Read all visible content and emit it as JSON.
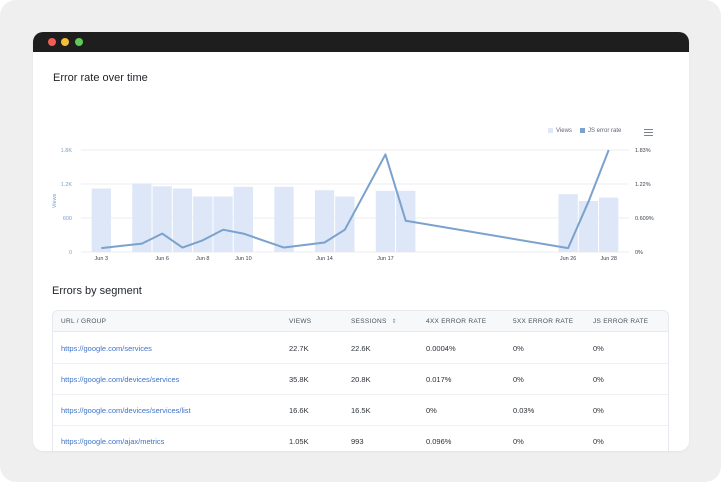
{
  "window": {
    "dots": [
      "close",
      "minimize",
      "maximize"
    ]
  },
  "chart": {
    "title": "Error rate over time",
    "legend": [
      {
        "label": "Views",
        "color": "#dde7f7"
      },
      {
        "label": "JS error rate",
        "color": "#7aa2cc"
      }
    ],
    "menu_icon": "hamburger-menu-icon"
  },
  "chart_data": {
    "type": "bar+line",
    "title": "Error rate over time",
    "x_ticks": [
      "Jun 3",
      "Jun 6",
      "Jun 8",
      "Jun 10",
      "Jun 14",
      "Jun 17",
      "Jun 26",
      "Jun 28"
    ],
    "left_axis": {
      "label": "Views",
      "ticks": [
        "0",
        "600",
        "1.2K",
        "1.8K"
      ],
      "range": [
        0,
        1800
      ]
    },
    "right_axis": {
      "ticks": [
        "0%",
        "0.609%",
        "1.22%",
        "1.83%"
      ],
      "range": [
        0,
        1.83
      ]
    },
    "series": [
      {
        "name": "Views",
        "type": "bar",
        "color": "#dde7f7",
        "x": [
          "Jun 3",
          "Jun 5",
          "Jun 6",
          "Jun 7",
          "Jun 8",
          "Jun 9",
          "Jun 10",
          "Jun 12",
          "Jun 14",
          "Jun 15",
          "Jun 17",
          "Jun 18",
          "Jun 26",
          "Jun 27",
          "Jun 28"
        ],
        "values": [
          1120,
          1210,
          1160,
          1120,
          980,
          980,
          1150,
          1150,
          1090,
          980,
          1080,
          1080,
          1020,
          900,
          960
        ]
      },
      {
        "name": "JS error rate",
        "type": "line",
        "color": "#7aa2cc",
        "x": [
          "Jun 3",
          "Jun 5",
          "Jun 6",
          "Jun 7",
          "Jun 8",
          "Jun 9",
          "Jun 10",
          "Jun 12",
          "Jun 14",
          "Jun 15",
          "Jun 17",
          "Jun 18",
          "Jun 26",
          "Jun 27",
          "Jun 28"
        ],
        "values": [
          0.07,
          0.15,
          0.33,
          0.08,
          0.21,
          0.4,
          0.33,
          0.08,
          0.17,
          0.4,
          1.75,
          0.56,
          0.07,
          0.9,
          1.83
        ]
      }
    ],
    "grid": true
  },
  "table": {
    "title": "Errors by segment",
    "columns": [
      "URL / GROUP",
      "VIEWS",
      "SESSIONS",
      "4XX ERROR RATE",
      "5XX ERROR RATE",
      "JS ERROR RATE"
    ],
    "sort_icon": "sort-arrows-icon",
    "rows": [
      [
        "https://google.com/services",
        "22.7K",
        "22.6K",
        "0.0004%",
        "0%",
        "0%"
      ],
      [
        "https://google.com/devices/services",
        "35.8K",
        "20.8K",
        "0.017%",
        "0%",
        "0%"
      ],
      [
        "https://google.com/devices/services/list",
        "16.6K",
        "16.5K",
        "0%",
        "0.03%",
        "0%"
      ],
      [
        "https://google.com/ajax/metrics",
        "1.05K",
        "993",
        "0.096%",
        "0%",
        "0%"
      ]
    ]
  }
}
